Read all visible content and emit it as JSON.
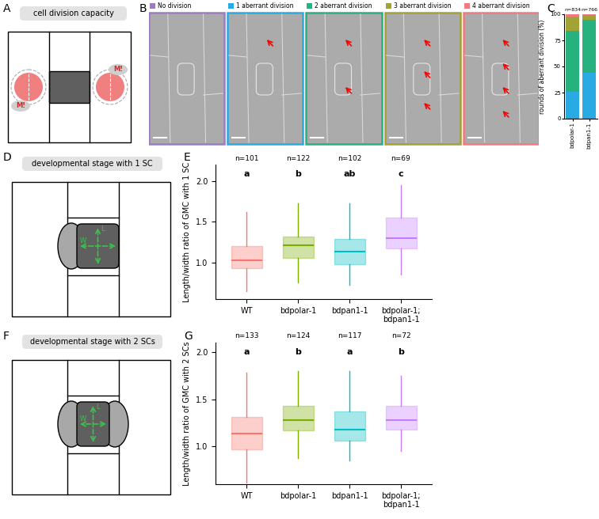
{
  "panel_labels": [
    "A",
    "B",
    "C",
    "D",
    "E",
    "F",
    "G"
  ],
  "diagram_A": {
    "title": "cell division capacity",
    "marks": [
      "M!",
      "M!"
    ]
  },
  "micrographs_B": [
    {
      "title": "No division",
      "color": "#9d7cc1"
    },
    {
      "title": "1 aberrant division",
      "color": "#2aaae2"
    },
    {
      "title": "2 aberrant division",
      "color": "#27b17e"
    },
    {
      "title": "3 aberrant division",
      "color": "#a1a334"
    },
    {
      "title": "4 aberrant division",
      "color": "#ef7a82"
    }
  ],
  "diagram_D": {
    "title": "developmental stage with 1 SC",
    "length_label": "L",
    "width_label": "W"
  },
  "diagram_F": {
    "title": "developmental stage with 2 SCs",
    "length_label": "L",
    "width_label": "W"
  },
  "chart_data": [
    {
      "type": "bar",
      "stacked": true,
      "grid": false,
      "categories": [
        "bdpolar-1",
        "bdpan1-1"
      ],
      "n_labels": [
        "n=834",
        "n=766"
      ],
      "ylabel": "rounds of aberrant division (%)",
      "ylim": [
        0,
        100
      ],
      "yticks": [
        0,
        25,
        50,
        75,
        100
      ],
      "series": [
        {
          "color": "#2aaae2",
          "values": [
            26,
            44
          ]
        },
        {
          "color": "#27b17e",
          "values": [
            58,
            51
          ]
        },
        {
          "color": "#a1a334",
          "values": [
            14,
            4
          ]
        },
        {
          "color": "#ef7a82",
          "values": [
            2,
            1
          ]
        }
      ]
    },
    {
      "type": "box",
      "grid": false,
      "categories": [
        "WT",
        "bdpolar-1",
        "bdpan1-1",
        "bdpolar-1;\nbdpan1-1"
      ],
      "n_labels": [
        "n=101",
        "n=122",
        "n=102",
        "n=69"
      ],
      "group_letters": [
        "a",
        "b",
        "ab",
        "c"
      ],
      "ylabel": "Length/width ratio of GMC with 1 SC",
      "ylim": [
        0.55,
        2.2
      ],
      "yticks": [
        {
          "value": 1.0,
          "label": "1.0"
        },
        {
          "value": 1.5,
          "label": "1.5"
        },
        {
          "value": 2.0,
          "label": "2.0"
        }
      ],
      "colors": [
        "#f8766d",
        "#7cae00",
        "#00bfc4",
        "#c77cff"
      ],
      "boxes": [
        {
          "whislo": 0.65,
          "q1": 0.93,
          "median": 1.03,
          "q3": 1.2,
          "whishi": 1.62
        },
        {
          "whislo": 0.75,
          "q1": 1.05,
          "median": 1.21,
          "q3": 1.32,
          "whishi": 1.72
        },
        {
          "whislo": 0.72,
          "q1": 0.98,
          "median": 1.13,
          "q3": 1.29,
          "whishi": 1.72
        },
        {
          "whislo": 0.85,
          "q1": 1.17,
          "median": 1.3,
          "q3": 1.55,
          "whishi": 1.95
        }
      ]
    },
    {
      "type": "box",
      "grid": false,
      "categories": [
        "WT",
        "bdpolar-1",
        "bdpan1-1",
        "bdpolar-1;\nbdpan1-1"
      ],
      "n_labels": [
        "n=133",
        "n=124",
        "n=117",
        "n=72"
      ],
      "group_letters": [
        "a",
        "b",
        "a",
        "b"
      ],
      "ylabel": "Length/width ratio of GMC with 2 SCs",
      "ylim": [
        0.6,
        2.1
      ],
      "yticks": [
        {
          "value": 1.0,
          "label": "1.0"
        },
        {
          "value": 1.5,
          "label": "1.5"
        },
        {
          "value": 2.0,
          "label": "2.0"
        }
      ],
      "colors": [
        "#f8766d",
        "#7cae00",
        "#00bfc4",
        "#c77cff"
      ],
      "boxes": [
        {
          "whislo": 0.62,
          "q1": 0.97,
          "median": 1.14,
          "q3": 1.31,
          "whishi": 1.78
        },
        {
          "whislo": 0.88,
          "q1": 1.17,
          "median": 1.28,
          "q3": 1.43,
          "whishi": 1.8
        },
        {
          "whislo": 0.85,
          "q1": 1.06,
          "median": 1.18,
          "q3": 1.37,
          "whishi": 1.8
        },
        {
          "whislo": 0.95,
          "q1": 1.18,
          "median": 1.28,
          "q3": 1.43,
          "whishi": 1.75
        }
      ]
    }
  ]
}
